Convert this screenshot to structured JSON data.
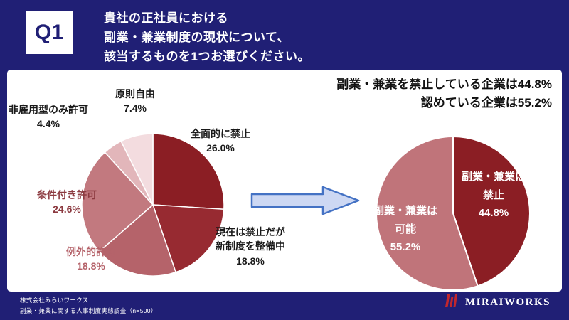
{
  "header": {
    "q_label": "Q1",
    "title_lines": [
      "貴社の正社員における",
      "副業・兼業制度の現状について、",
      "該当するものを1つお選びください。"
    ]
  },
  "summary": {
    "lines": [
      "副業・兼業を禁止している企業は44.8%",
      "認めている企業は55.2%"
    ]
  },
  "footer": {
    "company": "株式会社みらいワークス",
    "survey": "副業・兼業に関する人事制度実態調査（n=500）",
    "logo_text": "MIRAIWORKS"
  },
  "colors": {
    "background": "#201f75",
    "dark_red": "#8b1e24",
    "arrow_fill": "#cdd8f3",
    "arrow_stroke": "#4472c4",
    "logo_red": "#c1272d"
  },
  "chart_data": [
    {
      "type": "pie",
      "name": "副業・兼業制度の現状（内訳）",
      "start_angle_deg": 0,
      "direction": "clockwise",
      "slices": [
        {
          "label": "全面的に禁止",
          "value": 26.0,
          "display": "26.0%",
          "color": "#8b1e24"
        },
        {
          "label": "現在は禁止だが新制度を整備中",
          "value": 18.8,
          "display": "18.8%",
          "color": "#972a31"
        },
        {
          "label": "例外的許可",
          "value": 18.8,
          "display": "18.8%",
          "color": "#b5636a"
        },
        {
          "label": "条件付き許可",
          "value": 24.6,
          "display": "24.6%",
          "color": "#c2797f"
        },
        {
          "label": "非雇用型のみ許可",
          "value": 4.4,
          "display": "4.4%",
          "color": "#e2b6ba"
        },
        {
          "label": "原則自由",
          "value": 7.4,
          "display": "7.4%",
          "color": "#f3dcdf"
        }
      ]
    },
    {
      "type": "pie",
      "name": "禁止か可能か（集計）",
      "start_angle_deg": 0,
      "direction": "clockwise",
      "slices": [
        {
          "label": "副業・兼業は禁止",
          "value": 44.8,
          "display": "44.8%",
          "color": "#8b1e24"
        },
        {
          "label": "副業・兼業は可能",
          "value": 55.2,
          "display": "55.2%",
          "color": "#c0747a"
        }
      ]
    }
  ]
}
